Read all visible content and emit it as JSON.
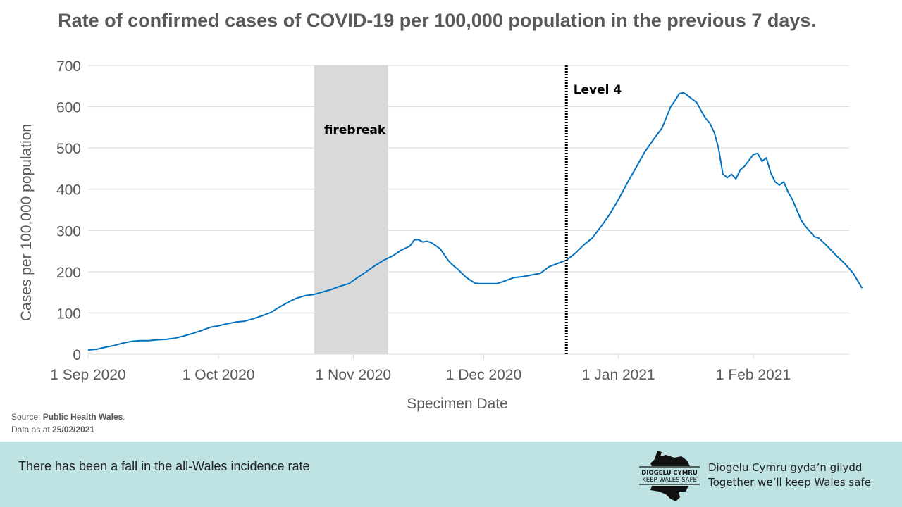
{
  "chart_data": {
    "type": "line",
    "title": "Rate of confirmed cases of COVID-19 per 100,000 population in the previous 7 days.",
    "xlabel": "Specimen Date",
    "ylabel": "Cases per 100,000 population",
    "ylim": [
      0,
      700
    ],
    "yticks": [
      0,
      100,
      200,
      300,
      400,
      500,
      600,
      700
    ],
    "xlim_days": [
      0,
      178
    ],
    "xtick_labels": [
      {
        "day": 0,
        "label": "1 Sep 2020"
      },
      {
        "day": 30,
        "label": "1 Oct 2020"
      },
      {
        "day": 61,
        "label": "1 Nov 2020"
      },
      {
        "day": 91,
        "label": "1 Dec 2020"
      },
      {
        "day": 122,
        "label": "1 Jan 2021"
      },
      {
        "day": 153,
        "label": "1 Feb 2021"
      }
    ],
    "grid": true,
    "series": [
      {
        "name": "All-Wales incidence rate",
        "color": "#0070c0",
        "points": [
          [
            0,
            10
          ],
          [
            2,
            12
          ],
          [
            4,
            17
          ],
          [
            6,
            21
          ],
          [
            8,
            27
          ],
          [
            10,
            31
          ],
          [
            12,
            33
          ],
          [
            14,
            33
          ],
          [
            16,
            35
          ],
          [
            18,
            36
          ],
          [
            20,
            39
          ],
          [
            22,
            44
          ],
          [
            24,
            50
          ],
          [
            26,
            57
          ],
          [
            28,
            65
          ],
          [
            30,
            69
          ],
          [
            32,
            74
          ],
          [
            34,
            78
          ],
          [
            36,
            80
          ],
          [
            38,
            86
          ],
          [
            40,
            93
          ],
          [
            42,
            101
          ],
          [
            44,
            114
          ],
          [
            46,
            126
          ],
          [
            48,
            136
          ],
          [
            50,
            142
          ],
          [
            52,
            145
          ],
          [
            54,
            151
          ],
          [
            56,
            157
          ],
          [
            58,
            165
          ],
          [
            60,
            171
          ],
          [
            62,
            186
          ],
          [
            64,
            200
          ],
          [
            66,
            215
          ],
          [
            68,
            228
          ],
          [
            70,
            238
          ],
          [
            72,
            252
          ],
          [
            74,
            262
          ],
          [
            75,
            277
          ],
          [
            76,
            278
          ],
          [
            77,
            272
          ],
          [
            78,
            274
          ],
          [
            79,
            270
          ],
          [
            80,
            263
          ],
          [
            81,
            255
          ],
          [
            82,
            240
          ],
          [
            83,
            225
          ],
          [
            84,
            215
          ],
          [
            85,
            206
          ],
          [
            86,
            196
          ],
          [
            87,
            186
          ],
          [
            88,
            179
          ],
          [
            89,
            172
          ],
          [
            90,
            171
          ],
          [
            92,
            171
          ],
          [
            94,
            171
          ],
          [
            96,
            178
          ],
          [
            98,
            186
          ],
          [
            100,
            188
          ],
          [
            102,
            192
          ],
          [
            104,
            196
          ],
          [
            106,
            212
          ],
          [
            108,
            220
          ],
          [
            110,
            228
          ],
          [
            112,
            244
          ],
          [
            114,
            265
          ],
          [
            116,
            282
          ],
          [
            118,
            310
          ],
          [
            120,
            340
          ],
          [
            122,
            375
          ],
          [
            124,
            415
          ],
          [
            126,
            452
          ],
          [
            128,
            490
          ],
          [
            130,
            520
          ],
          [
            132,
            548
          ],
          [
            134,
            600
          ],
          [
            135,
            615
          ],
          [
            136,
            632
          ],
          [
            137,
            634
          ],
          [
            138,
            626
          ],
          [
            139,
            618
          ],
          [
            140,
            610
          ],
          [
            141,
            590
          ],
          [
            142,
            572
          ],
          [
            143,
            560
          ],
          [
            144,
            538
          ],
          [
            145,
            500
          ],
          [
            146,
            437
          ],
          [
            147,
            428
          ],
          [
            148,
            436
          ],
          [
            149,
            425
          ],
          [
            150,
            447
          ],
          [
            151,
            456
          ],
          [
            152,
            470
          ],
          [
            153,
            484
          ],
          [
            154,
            487
          ],
          [
            155,
            468
          ],
          [
            156,
            476
          ],
          [
            157,
            440
          ],
          [
            158,
            418
          ],
          [
            159,
            410
          ],
          [
            160,
            418
          ],
          [
            161,
            393
          ],
          [
            162,
            375
          ],
          [
            163,
            350
          ],
          [
            164,
            325
          ],
          [
            165,
            310
          ],
          [
            166,
            298
          ],
          [
            167,
            285
          ],
          [
            168,
            282
          ],
          [
            170,
            262
          ],
          [
            172,
            240
          ],
          [
            174,
            220
          ],
          [
            176,
            196
          ],
          [
            178,
            160
          ]
        ]
      }
    ],
    "annotations": [
      {
        "type": "shaded-band",
        "label": "firebreak",
        "from_day": 52,
        "to_day": 69,
        "color": "#d9d9d9"
      },
      {
        "type": "vertical-dashed-line",
        "label": "Level 4",
        "day": 110,
        "color": "#000000"
      }
    ]
  },
  "source": {
    "prefix": "Source: ",
    "name": "Public Health Wales",
    "suffix": "."
  },
  "data_as_at": {
    "prefix": "Data as at ",
    "date": "25/02/2021"
  },
  "footer": {
    "message": "There has been a fall in the all-Wales incidence rate",
    "logo": {
      "line1": "DIOGELU CYMRU",
      "line2": "KEEP WALES SAFE"
    },
    "tagline_welsh": "Diogelu Cymru gyda’n gilydd",
    "tagline_english": "Together we’ll keep Wales safe"
  },
  "colors": {
    "footer_bg": "#bfe3e3",
    "line": "#0070c0",
    "band": "#d9d9d9"
  }
}
